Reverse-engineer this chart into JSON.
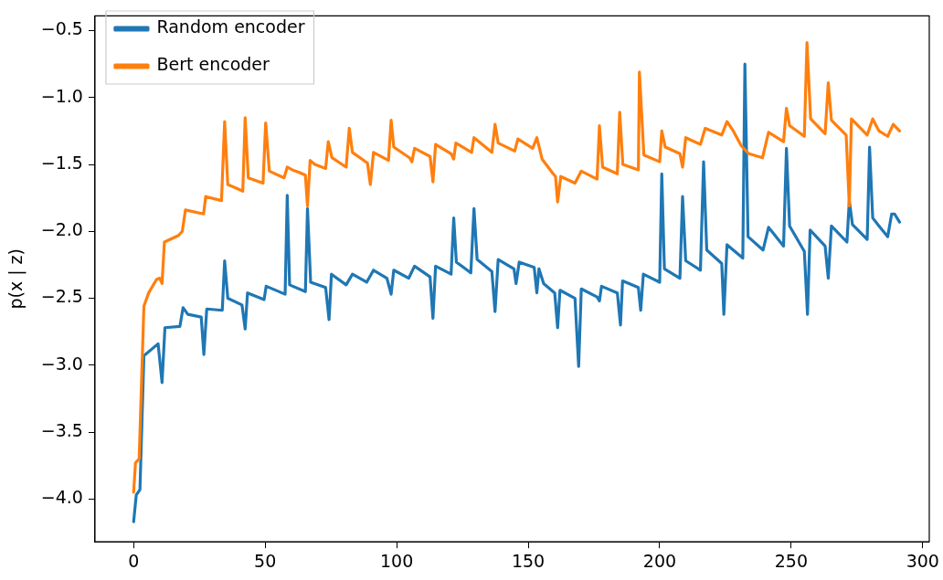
{
  "chart_data": {
    "type": "line",
    "ylabel": "p(x | z)",
    "legend": "top left",
    "grid": false,
    "marker": "none",
    "line_style": "solid",
    "xlim": [
      -14.7,
      302.5
    ],
    "ylim": [
      -4.32,
      -0.39
    ],
    "xticks": [
      0,
      50,
      100,
      150,
      200,
      250,
      300
    ],
    "yticks": [
      {
        "value": -4.0,
        "label": "−4.0"
      },
      {
        "value": -3.5,
        "label": "−3.5"
      },
      {
        "value": -3.0,
        "label": "−3.0"
      },
      {
        "value": -2.5,
        "label": "−2.5"
      },
      {
        "value": -2.0,
        "label": "−2.0"
      },
      {
        "value": -1.5,
        "label": "−1.5"
      },
      {
        "value": -1.0,
        "label": "−1.0"
      },
      {
        "value": -0.5,
        "label": "−0.5"
      }
    ],
    "series": [
      {
        "name": "Random encoder",
        "color": "#1f77b4",
        "x": [
          0,
          1,
          2.4,
          3.9,
          9.3,
          10.8,
          11.9,
          17.6,
          18.8,
          20.6,
          25.7,
          26.7,
          27.8,
          33.7,
          34.6,
          35.8,
          41.2,
          42.4,
          43.3,
          49.6,
          50.4,
          57.6,
          58.4,
          59.3,
          65.3,
          66.1,
          67.3,
          73,
          74.3,
          75.2,
          80.8,
          83.2,
          88.6,
          91.2,
          96.3,
          97.9,
          98.9,
          104.6,
          106.8,
          112.7,
          113.8,
          114.8,
          120.7,
          121.7,
          122.7,
          128.2,
          129.4,
          130.6,
          136.2,
          137.4,
          138.6,
          144.6,
          145.4,
          146.6,
          152.3,
          153.3,
          154.1,
          155.9,
          160.1,
          161.2,
          162.1,
          167.8,
          169.2,
          170.2,
          176.2,
          177.1,
          177.9,
          183.9,
          185.1,
          185.9,
          191.9,
          192.8,
          193.8,
          200,
          200.8,
          201.8,
          207.7,
          208.7,
          209.9,
          215.5,
          216.7,
          217.9,
          223.6,
          224.4,
          225.6,
          231.6,
          232.4,
          233.6,
          239.3,
          241.4,
          247.1,
          248.2,
          249.4,
          255,
          256.2,
          257.2,
          262.9,
          264.1,
          265.3,
          271.2,
          272.1,
          273.3,
          278.9,
          279.8,
          281,
          283.4,
          286.7,
          288.2,
          289.3,
          291.2
        ],
        "values": [
          -4.17,
          -3.97,
          -3.93,
          -2.93,
          -2.84,
          -3.13,
          -2.72,
          -2.71,
          -2.57,
          -2.62,
          -2.64,
          -2.92,
          -2.58,
          -2.59,
          -2.22,
          -2.5,
          -2.55,
          -2.73,
          -2.46,
          -2.51,
          -2.41,
          -2.47,
          -1.73,
          -2.4,
          -2.45,
          -1.83,
          -2.38,
          -2.42,
          -2.66,
          -2.32,
          -2.4,
          -2.32,
          -2.38,
          -2.29,
          -2.35,
          -2.47,
          -2.29,
          -2.35,
          -2.26,
          -2.34,
          -2.65,
          -2.26,
          -2.32,
          -1.9,
          -2.23,
          -2.31,
          -1.83,
          -2.21,
          -2.3,
          -2.6,
          -2.21,
          -2.28,
          -2.39,
          -2.23,
          -2.27,
          -2.46,
          -2.28,
          -2.39,
          -2.46,
          -2.72,
          -2.44,
          -2.5,
          -3.01,
          -2.43,
          -2.49,
          -2.52,
          -2.41,
          -2.46,
          -2.7,
          -2.37,
          -2.42,
          -2.59,
          -2.32,
          -2.38,
          -1.57,
          -2.28,
          -2.35,
          -1.74,
          -2.22,
          -2.29,
          -1.48,
          -2.14,
          -2.24,
          -2.62,
          -2.1,
          -2.2,
          -0.75,
          -2.04,
          -2.14,
          -1.97,
          -2.11,
          -1.38,
          -1.96,
          -2.15,
          -2.62,
          -1.99,
          -2.11,
          -2.35,
          -1.96,
          -2.08,
          -1.77,
          -1.95,
          -2.06,
          -1.37,
          -1.9,
          -1.96,
          -2.04,
          -1.87,
          -1.87,
          -1.93
        ]
      },
      {
        "name": "Bert encoder",
        "color": "#ff7f0e",
        "x": [
          0,
          0.7,
          2.1,
          3.9,
          5.7,
          8.7,
          9.9,
          10.8,
          11.7,
          17.1,
          18.5,
          19.7,
          26.6,
          27.4,
          33.4,
          34.6,
          35.8,
          41.5,
          42.4,
          43.6,
          49.2,
          50.2,
          51.6,
          57.2,
          58.4,
          60.3,
          62.9,
          65.3,
          66.1,
          67.1,
          68.9,
          73,
          74,
          75.4,
          80.8,
          82,
          83.2,
          88.9,
          90,
          91.2,
          96.9,
          97.9,
          98.9,
          104.9,
          105.8,
          106.8,
          112.7,
          113.8,
          114.8,
          120.7,
          121.7,
          122.5,
          128.5,
          129.4,
          136.2,
          137.4,
          138.6,
          144.9,
          146.1,
          151.7,
          153.3,
          155.3,
          159.5,
          160.4,
          161.2,
          162.4,
          167.8,
          170.2,
          176.2,
          177.1,
          178.3,
          183.9,
          184.8,
          186,
          191.9,
          192.3,
          194,
          200,
          200.8,
          202.1,
          207.7,
          208.7,
          209.9,
          215.5,
          217.3,
          223.6,
          225.6,
          228,
          231,
          233.9,
          239.1,
          241.4,
          247.1,
          248.2,
          249.4,
          255,
          256,
          257.4,
          262.9,
          264.1,
          265.3,
          270.9,
          272.1,
          272.9,
          278.9,
          281,
          283.4,
          286.7,
          288.8,
          291.2
        ],
        "values": [
          -3.95,
          -3.73,
          -3.7,
          -2.56,
          -2.46,
          -2.36,
          -2.35,
          -2.39,
          -2.08,
          -2.03,
          -2,
          -1.84,
          -1.87,
          -1.74,
          -1.77,
          -1.18,
          -1.65,
          -1.7,
          -1.15,
          -1.6,
          -1.64,
          -1.19,
          -1.55,
          -1.6,
          -1.52,
          -1.54,
          -1.56,
          -1.58,
          -1.81,
          -1.47,
          -1.5,
          -1.53,
          -1.33,
          -1.45,
          -1.52,
          -1.23,
          -1.41,
          -1.49,
          -1.65,
          -1.41,
          -1.47,
          -1.17,
          -1.37,
          -1.45,
          -1.48,
          -1.38,
          -1.44,
          -1.63,
          -1.35,
          -1.42,
          -1.46,
          -1.34,
          -1.41,
          -1.3,
          -1.41,
          -1.2,
          -1.34,
          -1.4,
          -1.31,
          -1.38,
          -1.3,
          -1.46,
          -1.57,
          -1.59,
          -1.78,
          -1.59,
          -1.64,
          -1.55,
          -1.61,
          -1.21,
          -1.52,
          -1.57,
          -1.11,
          -1.5,
          -1.54,
          -0.81,
          -1.43,
          -1.48,
          -1.25,
          -1.37,
          -1.42,
          -1.52,
          -1.3,
          -1.35,
          -1.23,
          -1.28,
          -1.18,
          -1.25,
          -1.36,
          -1.42,
          -1.45,
          -1.26,
          -1.33,
          -1.08,
          -1.21,
          -1.29,
          -0.59,
          -1.16,
          -1.27,
          -0.89,
          -1.17,
          -1.28,
          -1.81,
          -1.16,
          -1.28,
          -1.16,
          -1.25,
          -1.29,
          -1.2,
          -1.25
        ]
      }
    ]
  }
}
